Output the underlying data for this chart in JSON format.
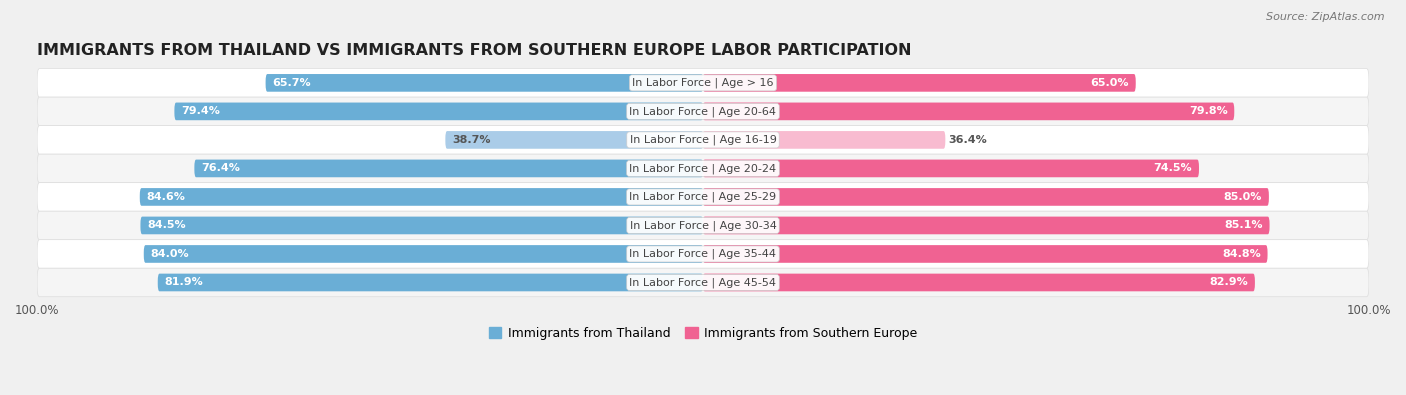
{
  "title": "IMMIGRANTS FROM THAILAND VS IMMIGRANTS FROM SOUTHERN EUROPE LABOR PARTICIPATION",
  "source": "Source: ZipAtlas.com",
  "categories": [
    "In Labor Force | Age > 16",
    "In Labor Force | Age 20-64",
    "In Labor Force | Age 16-19",
    "In Labor Force | Age 20-24",
    "In Labor Force | Age 25-29",
    "In Labor Force | Age 30-34",
    "In Labor Force | Age 35-44",
    "In Labor Force | Age 45-54"
  ],
  "thailand_values": [
    65.7,
    79.4,
    38.7,
    76.4,
    84.6,
    84.5,
    84.0,
    81.9
  ],
  "southern_europe_values": [
    65.0,
    79.8,
    36.4,
    74.5,
    85.0,
    85.1,
    84.8,
    82.9
  ],
  "thailand_color": "#6AAED6",
  "thailand_color_light": "#AACCE8",
  "southern_europe_color": "#F06292",
  "southern_europe_color_light": "#F8BBD0",
  "bar_height": 0.62,
  "background_color": "#F0F0F0",
  "row_bg_color": "#FAFAFA",
  "row_bg_color2": "#F2F2F2",
  "legend_label_thailand": "Immigrants from Thailand",
  "legend_label_southern_europe": "Immigrants from Southern Europe",
  "xlim": 100.0,
  "title_fontsize": 11.5,
  "label_fontsize": 8,
  "value_fontsize": 8,
  "low_value_categories": [
    "In Labor Force | Age 16-19"
  ]
}
